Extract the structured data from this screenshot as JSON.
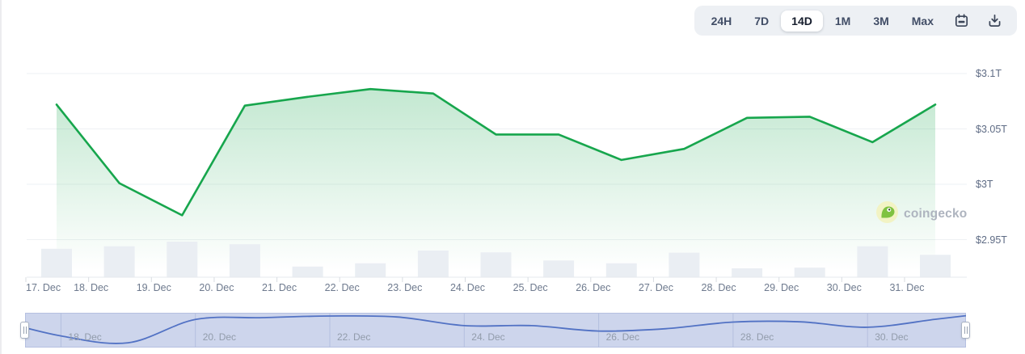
{
  "header": {
    "ranges": [
      {
        "label": "24H",
        "active": false
      },
      {
        "label": "7D",
        "active": false
      },
      {
        "label": "14D",
        "active": true
      },
      {
        "label": "1M",
        "active": false
      },
      {
        "label": "3M",
        "active": false
      },
      {
        "label": "Max",
        "active": false
      }
    ],
    "icons": [
      "calendar-range-icon",
      "download-icon"
    ]
  },
  "watermark": {
    "text": "coingecko"
  },
  "colors": {
    "line_green": "#17a64d",
    "area_green_top": "rgba(23,166,77,0.26)",
    "area_green_bottom": "rgba(23,166,77,0)",
    "volume_bar": "#eaeef3",
    "grid": "#eef1f4",
    "axis": "#e5e8ed",
    "tick": "#d9dde2",
    "nav_background": "#cdd5ec",
    "nav_line": "#5272c4",
    "nav_gridline": "#b4bfdf",
    "toolbar_background": "#edf0f4"
  },
  "chart_data": {
    "type": "area",
    "categories": [
      "17. Dec",
      "18. Dec",
      "19. Dec",
      "20. Dec",
      "21. Dec",
      "22. Dec",
      "23. Dec",
      "24. Dec",
      "25. Dec",
      "26. Dec",
      "27. Dec",
      "28. Dec",
      "29. Dec",
      "30. Dec",
      "31. Dec"
    ],
    "series": [
      {
        "name": "market-cap-trillions-usd",
        "type": "area",
        "values": [
          3.072,
          3.001,
          2.972,
          3.071,
          3.079,
          3.086,
          3.082,
          3.045,
          3.045,
          3.022,
          3.032,
          3.06,
          3.061,
          3.038,
          3.072
        ]
      },
      {
        "name": "volume-relative",
        "type": "bar",
        "values": [
          0.8,
          0.87,
          1.0,
          0.93,
          0.3,
          0.39,
          0.75,
          0.7,
          0.47,
          0.39,
          0.69,
          0.25,
          0.27,
          0.87,
          0.63
        ]
      }
    ],
    "y_axis": {
      "labels": [
        "$3.1T",
        "$3.05T",
        "$3T",
        "$2.95T"
      ],
      "values": [
        3.1,
        3.05,
        3.0,
        2.95
      ],
      "side": "right"
    },
    "ylim": [
      2.917,
      3.114
    ],
    "grid": "horizontal",
    "legend": "none",
    "navigator": {
      "labels": [
        "18. Dec",
        "20. Dec",
        "22. Dec",
        "24. Dec",
        "26. Dec",
        "28. Dec",
        "30. Dec"
      ]
    }
  }
}
